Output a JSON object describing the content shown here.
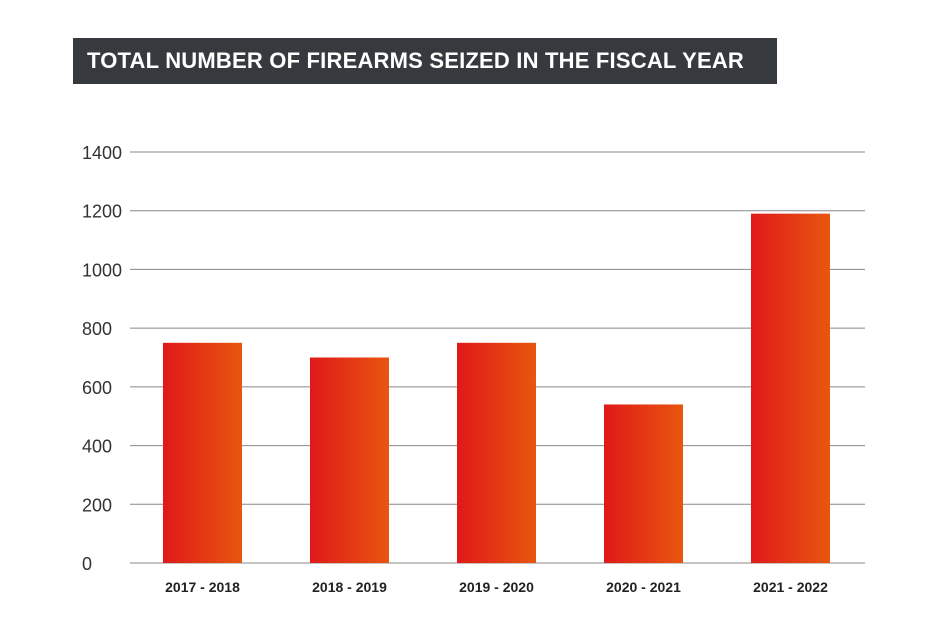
{
  "chart_data": {
    "type": "bar",
    "title": "TOTAL NUMBER OF FIREARMS SEIZED IN THE FISCAL YEAR",
    "xlabel": "",
    "ylabel": "",
    "categories": [
      "2017 - 2018",
      "2018 - 2019",
      "2019 - 2020",
      "2020 - 2021",
      "2021 - 2022"
    ],
    "values": [
      750,
      700,
      750,
      540,
      1190
    ],
    "ylim": [
      0,
      1400
    ],
    "yticks": [
      0,
      200,
      400,
      600,
      800,
      1000,
      1200,
      1400
    ],
    "grid": true,
    "colors": {
      "bar_start": "#e0191a",
      "bar_end": "#e8560f",
      "title_bg": "#363a3f",
      "grid": "#888888"
    }
  }
}
